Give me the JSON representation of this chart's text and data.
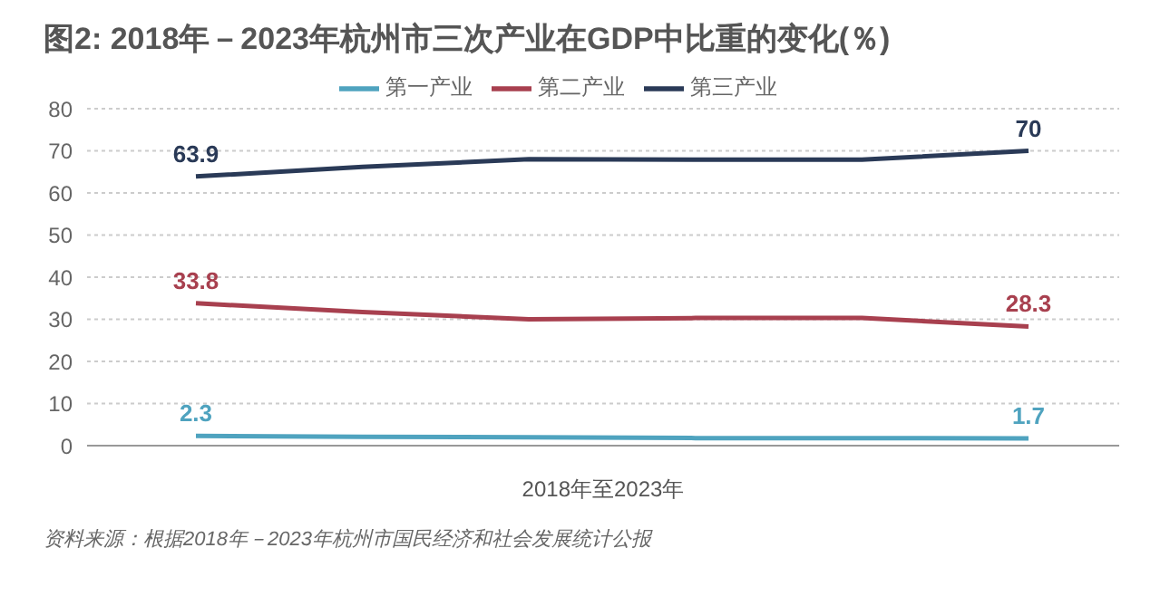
{
  "chart_data": {
    "type": "line",
    "title": "图2: 2018年－2023年杭州市三次产业在GDP中比重的变化(％)",
    "xlabel": "2018年至2023年",
    "categories": [
      null,
      null,
      null,
      null,
      null,
      null
    ],
    "series": [
      {
        "name": "第一产业",
        "color": "#4fa3bf",
        "values": [
          2.3,
          2.1,
          2.0,
          1.8,
          1.8,
          1.7
        ],
        "value_labels": [
          "2.3",
          null,
          null,
          null,
          null,
          "1.7"
        ]
      },
      {
        "name": "第二产业",
        "color": "#a8404f",
        "values": [
          33.8,
          31.7,
          30.0,
          30.3,
          30.3,
          28.3
        ],
        "value_labels": [
          "33.8",
          null,
          null,
          null,
          null,
          "28.3"
        ]
      },
      {
        "name": "第三产业",
        "color": "#2a3a57",
        "values": [
          63.9,
          66.2,
          68.0,
          67.9,
          67.9,
          70
        ],
        "value_labels": [
          "63.9",
          null,
          null,
          null,
          null,
          "70"
        ]
      }
    ],
    "ylim": [
      0,
      80
    ],
    "yticks": [
      0,
      10,
      20,
      30,
      40,
      50,
      60,
      70,
      80
    ],
    "grid": "y",
    "legend": "top",
    "annotations": [
      "资料来源：根据2018年－2023年杭州市国民经济和社会发展统计公报"
    ]
  }
}
